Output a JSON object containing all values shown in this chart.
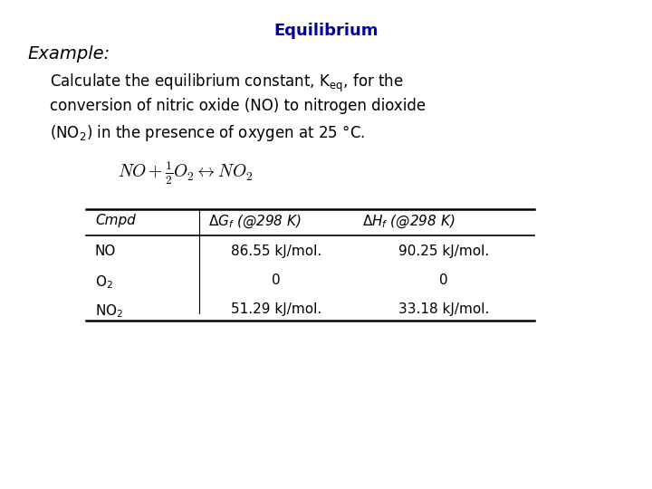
{
  "title": "Equilibrium",
  "title_color": "#000099",
  "title_fontsize": 13,
  "title_bold": true,
  "bg_color": "#ffffff",
  "text_fontsize": 12,
  "table_fontsize": 11,
  "equation_fontsize": 14,
  "table_rows": [
    [
      "NO",
      "86.55 kJ/mol.",
      "90.25 kJ/mol."
    ],
    [
      "O2",
      "0",
      "0"
    ],
    [
      "NO2",
      "51.29 kJ/mol.",
      "33.18 kJ/mol."
    ]
  ]
}
